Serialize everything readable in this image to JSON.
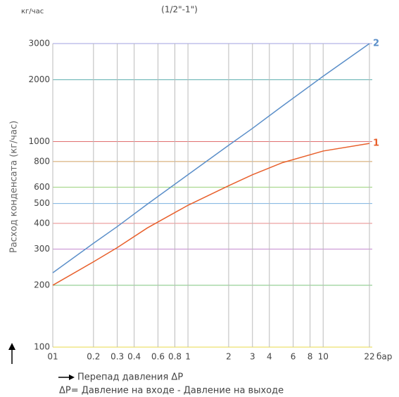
{
  "chart_data": {
    "type": "line",
    "title": "(1/2\"-1\")",
    "y_unit": "кг/час",
    "y_label": "Расход конденсата (кг/час)",
    "x_unit": "бар",
    "x_label": "Перепад давления ΔP",
    "annotation": "ΔP= Давление на входе - Давление на выходе",
    "log_x": true,
    "log_y": true,
    "grid": true,
    "x": [
      0.1,
      0.2,
      0.3,
      0.5,
      1,
      2,
      3,
      5,
      10,
      22
    ],
    "series": [
      {
        "name": "1",
        "color": "#e8602c",
        "values": [
          200,
          260,
          305,
          380,
          490,
          610,
          690,
          790,
          900,
          980
        ]
      },
      {
        "name": "2",
        "color": "#5b8fc9",
        "values": [
          230,
          320,
          386,
          496,
          690,
          960,
          1160,
          1490,
          2080,
          3000
        ]
      }
    ],
    "xlim": [
      0.1,
      22
    ],
    "ylim": [
      100,
      3000
    ],
    "xticks": [
      {
        "value": 0.1,
        "label": "01"
      },
      0.2,
      0.3,
      0.4,
      0.6,
      0.8,
      1,
      2,
      3,
      4,
      6,
      8,
      10,
      22
    ],
    "yticks": [
      100,
      200,
      300,
      400,
      500,
      600,
      800,
      1000,
      2000,
      3000
    ]
  }
}
